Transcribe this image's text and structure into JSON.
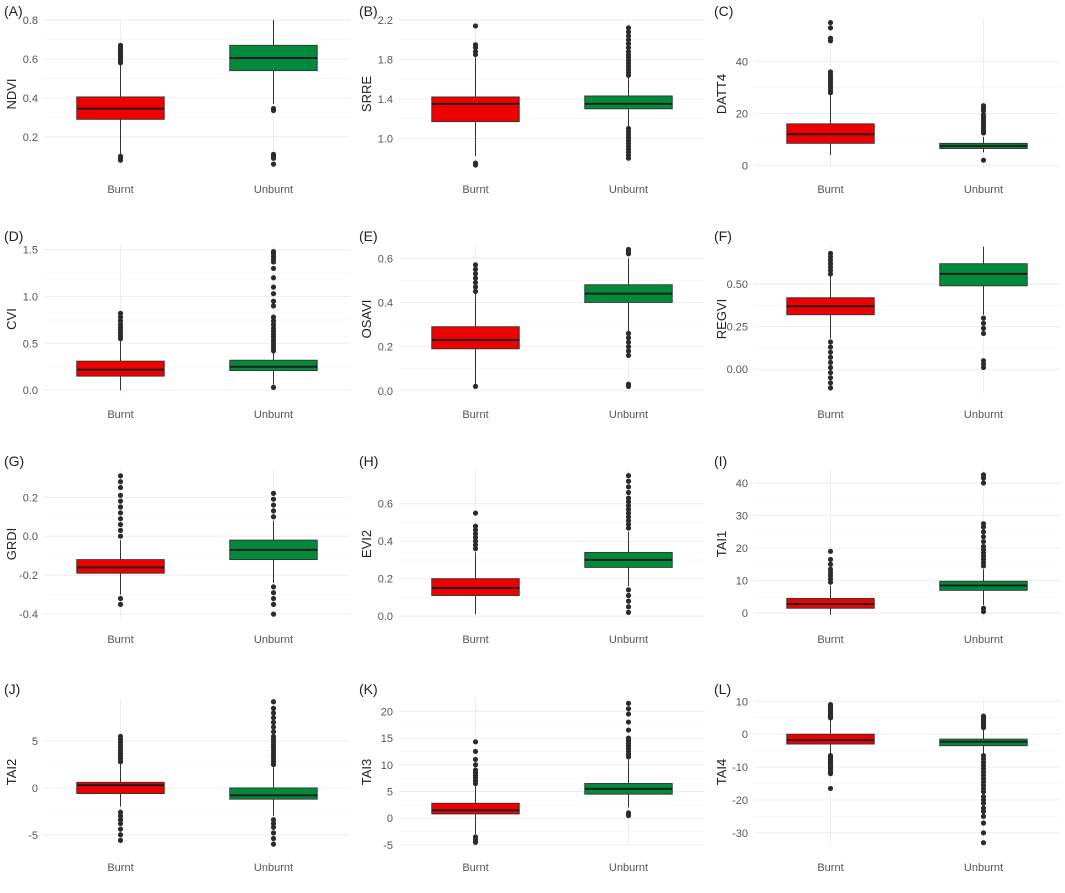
{
  "colors": {
    "burnt": "#ee0000",
    "unburnt": "#028a3c",
    "outline": "#333333",
    "grid": "#ebebeb",
    "outlier": "#2b2b2b"
  },
  "chart_data": [
    {
      "type": "box",
      "panel": "(A)",
      "ylabel": "NDVI",
      "categories": [
        "Burnt",
        "Unburnt"
      ],
      "ylim": [
        0.04,
        0.8
      ],
      "yticks": [
        0.2,
        0.4,
        0.6,
        0.8
      ],
      "ytick_labels": [
        "0.2",
        "0.4",
        "0.6",
        "0.8"
      ],
      "boxes": [
        {
          "whisker_low": 0.11,
          "q1": 0.29,
          "median": 0.345,
          "q3": 0.405,
          "whisker_high": 0.57,
          "outliers": [
            0.58,
            0.59,
            0.6,
            0.61,
            0.62,
            0.63,
            0.64,
            0.65,
            0.66,
            0.67,
            0.08,
            0.09,
            0.1
          ]
        },
        {
          "whisker_low": 0.37,
          "q1": 0.54,
          "median": 0.605,
          "q3": 0.67,
          "whisker_high": 0.8,
          "outliers": [
            0.345,
            0.335,
            0.11,
            0.1,
            0.09,
            0.06
          ]
        }
      ]
    },
    {
      "type": "box",
      "panel": "(B)",
      "ylabel": "SRRE",
      "categories": [
        "Burnt",
        "Unburnt"
      ],
      "ylim": [
        0.7,
        2.2
      ],
      "yticks": [
        1.0,
        1.4,
        1.8,
        2.2
      ],
      "ytick_labels": [
        "1.0",
        "1.4",
        "1.8",
        "2.2"
      ],
      "boxes": [
        {
          "whisker_low": 0.82,
          "q1": 1.17,
          "median": 1.35,
          "q3": 1.42,
          "whisker_high": 1.82,
          "outliers": [
            1.85,
            1.88,
            1.92,
            1.95,
            2.14,
            0.75,
            0.73
          ]
        },
        {
          "whisker_low": 1.12,
          "q1": 1.3,
          "median": 1.35,
          "q3": 1.43,
          "whisker_high": 1.62,
          "outliers": [
            1.64,
            1.67,
            1.7,
            1.73,
            1.76,
            1.79,
            1.82,
            1.85,
            1.88,
            1.92,
            1.96,
            2.0,
            2.04,
            2.08,
            2.12,
            1.1,
            1.07,
            1.04,
            1.01,
            0.98,
            0.95,
            0.92,
            0.89,
            0.86,
            0.83,
            0.8
          ]
        }
      ]
    },
    {
      "type": "box",
      "panel": "(C)",
      "ylabel": "DATT4",
      "categories": [
        "Burnt",
        "Unburnt"
      ],
      "ylim": [
        -1,
        56
      ],
      "yticks": [
        0,
        20,
        40
      ],
      "ytick_labels": [
        "0",
        "20",
        "40"
      ],
      "boxes": [
        {
          "whisker_low": 4,
          "q1": 8.5,
          "median": 12,
          "q3": 16,
          "whisker_high": 27,
          "outliers": [
            28,
            29,
            30,
            31,
            32,
            33,
            34,
            35,
            36,
            48,
            49,
            53,
            55
          ]
        },
        {
          "whisker_low": 5,
          "q1": 6.5,
          "median": 7.5,
          "q3": 8.5,
          "whisker_high": 11,
          "outliers": [
            12.5,
            13.5,
            14.5,
            15.5,
            16.5,
            17.5,
            18.5,
            19.5,
            21,
            22,
            23,
            2
          ]
        }
      ]
    },
    {
      "type": "box",
      "panel": "(D)",
      "ylabel": "CVI",
      "categories": [
        "Burnt",
        "Unburnt"
      ],
      "ylim": [
        -0.03,
        1.55
      ],
      "yticks": [
        0.0,
        0.5,
        1.0,
        1.5
      ],
      "ytick_labels": [
        "0.0",
        "0.5",
        "1.0",
        "1.5"
      ],
      "boxes": [
        {
          "whisker_low": 0.0,
          "q1": 0.15,
          "median": 0.22,
          "q3": 0.31,
          "whisker_high": 0.53,
          "outliers": [
            0.55,
            0.58,
            0.61,
            0.64,
            0.67,
            0.7,
            0.74,
            0.78,
            0.82
          ]
        },
        {
          "whisker_low": 0.06,
          "q1": 0.21,
          "median": 0.25,
          "q3": 0.32,
          "whisker_high": 0.4,
          "outliers": [
            0.42,
            0.45,
            0.48,
            0.51,
            0.54,
            0.57,
            0.6,
            0.63,
            0.66,
            0.7,
            0.74,
            0.78,
            0.9,
            0.95,
            1.03,
            1.1,
            1.2,
            1.3,
            1.37,
            1.4,
            1.43,
            1.46,
            1.48,
            0.03
          ]
        }
      ]
    },
    {
      "type": "box",
      "panel": "(E)",
      "ylabel": "OSAVI",
      "categories": [
        "Burnt",
        "Unburnt"
      ],
      "ylim": [
        -0.01,
        0.66
      ],
      "yticks": [
        0.0,
        0.2,
        0.4,
        0.6
      ],
      "ytick_labels": [
        "0.0",
        "0.2",
        "0.4",
        "0.6"
      ],
      "boxes": [
        {
          "whisker_low": 0.03,
          "q1": 0.19,
          "median": 0.23,
          "q3": 0.29,
          "whisker_high": 0.44,
          "outliers": [
            0.45,
            0.47,
            0.49,
            0.51,
            0.53,
            0.55,
            0.57,
            0.02
          ]
        },
        {
          "whisker_low": 0.27,
          "q1": 0.4,
          "median": 0.44,
          "q3": 0.48,
          "whisker_high": 0.6,
          "outliers": [
            0.62,
            0.63,
            0.64,
            0.26,
            0.24,
            0.22,
            0.2,
            0.18,
            0.16,
            0.03,
            0.02
          ]
        }
      ]
    },
    {
      "type": "box",
      "panel": "(F)",
      "ylabel": "REGVI",
      "categories": [
        "Burnt",
        "Unburnt"
      ],
      "ylim": [
        -0.14,
        0.73
      ],
      "yticks": [
        0.0,
        0.25,
        0.5
      ],
      "ytick_labels": [
        "0.00",
        "0.25",
        "0.50"
      ],
      "boxes": [
        {
          "whisker_low": 0.18,
          "q1": 0.32,
          "median": 0.37,
          "q3": 0.42,
          "whisker_high": 0.55,
          "outliers": [
            0.56,
            0.58,
            0.6,
            0.62,
            0.64,
            0.66,
            0.68,
            0.16,
            0.13,
            0.1,
            0.07,
            0.04,
            0.01,
            -0.02,
            -0.05,
            -0.08,
            -0.11
          ]
        },
        {
          "whisker_low": 0.32,
          "q1": 0.49,
          "median": 0.56,
          "q3": 0.62,
          "whisker_high": 0.72,
          "outliers": [
            0.3,
            0.27,
            0.24,
            0.21,
            0.05,
            0.03,
            0.01
          ]
        }
      ]
    },
    {
      "type": "box",
      "panel": "(G)",
      "ylabel": "GRDI",
      "categories": [
        "Burnt",
        "Unburnt"
      ],
      "ylim": [
        -0.42,
        0.34
      ],
      "yticks": [
        -0.4,
        -0.2,
        0.0,
        0.2
      ],
      "ytick_labels": [
        "-0.4",
        "-0.2",
        "0.0",
        "0.2"
      ],
      "boxes": [
        {
          "whisker_low": -0.3,
          "q1": -0.19,
          "median": -0.16,
          "q3": -0.12,
          "whisker_high": -0.02,
          "outliers": [
            0.0,
            0.03,
            0.06,
            0.09,
            0.12,
            0.15,
            0.18,
            0.21,
            0.25,
            0.28,
            0.31,
            -0.32,
            -0.35
          ]
        },
        {
          "whisker_low": -0.24,
          "q1": -0.12,
          "median": -0.07,
          "q3": -0.02,
          "whisker_high": 0.08,
          "outliers": [
            0.1,
            0.13,
            0.16,
            0.19,
            0.22,
            -0.26,
            -0.29,
            -0.32,
            -0.35,
            -0.4
          ]
        }
      ]
    },
    {
      "type": "box",
      "panel": "(H)",
      "ylabel": "EVI2",
      "categories": [
        "Burnt",
        "Unburnt"
      ],
      "ylim": [
        -0.01,
        0.78
      ],
      "yticks": [
        0.0,
        0.2,
        0.4,
        0.6
      ],
      "ytick_labels": [
        "0.0",
        "0.2",
        "0.4",
        "0.6"
      ],
      "boxes": [
        {
          "whisker_low": 0.01,
          "q1": 0.11,
          "median": 0.15,
          "q3": 0.2,
          "whisker_high": 0.34,
          "outliers": [
            0.36,
            0.38,
            0.4,
            0.42,
            0.44,
            0.46,
            0.48,
            0.55
          ]
        },
        {
          "whisker_low": 0.16,
          "q1": 0.26,
          "median": 0.3,
          "q3": 0.34,
          "whisker_high": 0.45,
          "outliers": [
            0.47,
            0.49,
            0.51,
            0.53,
            0.55,
            0.57,
            0.59,
            0.61,
            0.63,
            0.66,
            0.69,
            0.72,
            0.75,
            0.14,
            0.11,
            0.08,
            0.05,
            0.02
          ]
        }
      ]
    },
    {
      "type": "box",
      "panel": "(I)",
      "ylabel": "TAI1",
      "categories": [
        "Burnt",
        "Unburnt"
      ],
      "ylim": [
        -1.5,
        44
      ],
      "yticks": [
        0,
        10,
        20,
        30,
        40
      ],
      "ytick_labels": [
        "0",
        "10",
        "20",
        "30",
        "40"
      ],
      "boxes": [
        {
          "whisker_low": -0.5,
          "q1": 1.5,
          "median": 2.8,
          "q3": 4.5,
          "whisker_high": 8.5,
          "outliers": [
            9.5,
            10.5,
            11.5,
            12.5,
            13.5,
            15,
            16.5,
            19
          ]
        },
        {
          "whisker_low": 2.5,
          "q1": 7,
          "median": 8.5,
          "q3": 9.8,
          "whisker_high": 13.5,
          "outliers": [
            14.5,
            15.5,
            16.5,
            17.5,
            18.5,
            19.5,
            20.5,
            22,
            23.5,
            25,
            26.5,
            27.5,
            40,
            41.5,
            42.5,
            1.5,
            0.5
          ]
        }
      ]
    },
    {
      "type": "box",
      "panel": "(J)",
      "ylabel": "TAI2",
      "categories": [
        "Burnt",
        "Unburnt"
      ],
      "ylim": [
        -6.2,
        9.6
      ],
      "yticks": [
        -5,
        0,
        5
      ],
      "ytick_labels": [
        "-5",
        "0",
        "5"
      ],
      "boxes": [
        {
          "whisker_low": -2.0,
          "q1": -0.6,
          "median": 0.3,
          "q3": 0.6,
          "whisker_high": 2.6,
          "outliers": [
            2.8,
            3.1,
            3.4,
            3.7,
            4.0,
            4.3,
            4.6,
            4.9,
            5.2,
            5.5,
            -2.6,
            -3.0,
            -3.4,
            -3.8,
            -4.4,
            -5.0,
            -5.6
          ]
        },
        {
          "whisker_low": -3.0,
          "q1": -1.2,
          "median": -0.8,
          "q3": 0.0,
          "whisker_high": 2.2,
          "outliers": [
            2.5,
            2.8,
            3.1,
            3.4,
            3.7,
            4.0,
            4.3,
            4.6,
            4.9,
            5.2,
            5.5,
            6.0,
            6.5,
            7.0,
            7.5,
            8.0,
            8.5,
            9.2,
            -3.4,
            -3.8,
            -4.2,
            -4.8,
            -5.4,
            -6.0
          ]
        }
      ]
    },
    {
      "type": "box",
      "panel": "(K)",
      "ylabel": "TAI3",
      "categories": [
        "Burnt",
        "Unburnt"
      ],
      "ylim": [
        -5.2,
        22.5
      ],
      "yticks": [
        -5,
        0,
        5,
        10,
        15,
        20
      ],
      "ytick_labels": [
        "-5",
        "0",
        "5",
        "10",
        "15",
        "20"
      ],
      "boxes": [
        {
          "whisker_low": -3.0,
          "q1": 0.8,
          "median": 1.5,
          "q3": 2.8,
          "whisker_high": 6.0,
          "outliers": [
            6.5,
            7.0,
            7.5,
            8.0,
            8.5,
            9.0,
            10.0,
            11.0,
            12.5,
            14.3,
            -3.5,
            -4.0,
            -4.5
          ]
        },
        {
          "whisker_low": 2.0,
          "q1": 4.5,
          "median": 5.5,
          "q3": 6.5,
          "whisker_high": 11.0,
          "outliers": [
            11.5,
            12.0,
            12.5,
            13.0,
            13.5,
            14.0,
            14.5,
            15.0,
            16.5,
            18.0,
            19.5,
            20.5,
            21.5,
            1.0,
            0.5
          ]
        }
      ]
    },
    {
      "type": "box",
      "panel": "(L)",
      "ylabel": "TAI4",
      "categories": [
        "Burnt",
        "Unburnt"
      ],
      "ylim": [
        -34,
        11
      ],
      "yticks": [
        -30,
        -20,
        -10,
        0,
        10
      ],
      "ytick_labels": [
        "-30",
        "-20",
        "-10",
        "0",
        "10"
      ],
      "boxes": [
        {
          "whisker_low": -6.0,
          "q1": -3.0,
          "median": -1.8,
          "q3": 0.0,
          "whisker_high": 4.5,
          "outliers": [
            5.0,
            5.5,
            6.0,
            6.5,
            7.0,
            7.5,
            8.0,
            8.5,
            9.0,
            -6.5,
            -7.0,
            -7.5,
            -8.0,
            -8.5,
            -9.0,
            -9.5,
            -10.0,
            -10.5,
            -11.0,
            -11.5,
            -12.0,
            -16.5
          ]
        },
        {
          "whisker_low": -6.0,
          "q1": -3.5,
          "median": -2.3,
          "q3": -1.5,
          "whisker_high": 1.5,
          "outliers": [
            2.0,
            2.5,
            3.0,
            3.5,
            4.0,
            4.5,
            5.0,
            5.5,
            -6.5,
            -7.5,
            -8.5,
            -9.5,
            -10.5,
            -11.5,
            -12.5,
            -13.5,
            -14.5,
            -15.5,
            -16.5,
            -17.5,
            -19.0,
            -20.0,
            -21.0,
            -22.5,
            -23.5,
            -25.0,
            -27.0,
            -30.0,
            -33.0
          ]
        }
      ]
    }
  ]
}
